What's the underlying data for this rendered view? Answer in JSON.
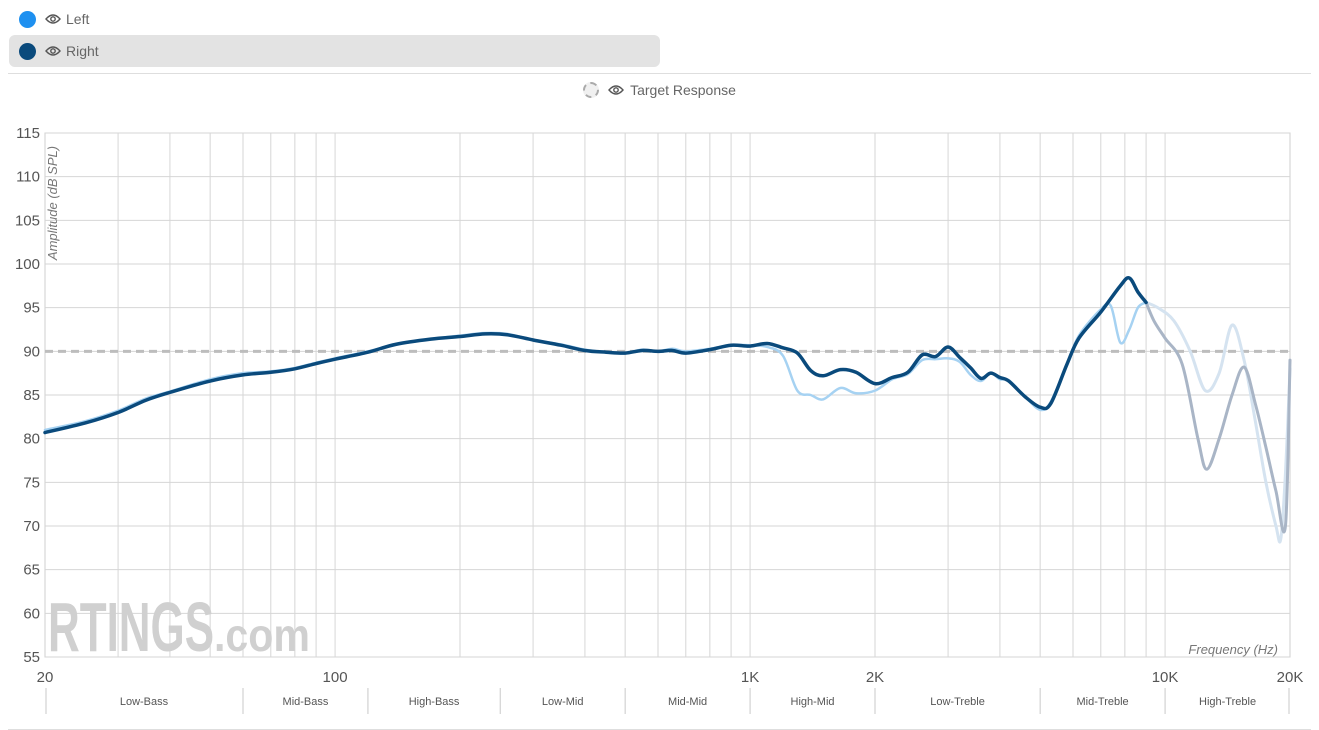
{
  "legend": {
    "items": [
      {
        "label": "Left",
        "color": "#1e90f0",
        "selected": false
      },
      {
        "label": "Right",
        "color": "#0a4a7c",
        "selected": true
      }
    ],
    "target_label": "Target Response"
  },
  "watermark": {
    "brand": "RTINGS",
    "suffix": ".com"
  },
  "chart_data": {
    "type": "line",
    "x_scale": "log",
    "xlim": [
      20,
      20000
    ],
    "ylim": [
      55,
      115
    ],
    "ylabel": "Amplitude (dB SPL)",
    "xlabel": "Frequency (Hz)",
    "yticks": [
      55,
      60,
      65,
      70,
      75,
      80,
      85,
      90,
      95,
      100,
      105,
      110,
      115
    ],
    "xtick_labels": [
      {
        "value": 20,
        "label": "20"
      },
      {
        "value": 100,
        "label": "100"
      },
      {
        "value": 1000,
        "label": "1K"
      },
      {
        "value": 2000,
        "label": "2K"
      },
      {
        "value": 10000,
        "label": "10K"
      },
      {
        "value": 20000,
        "label": "20K"
      }
    ],
    "grid": true,
    "target_level": 90,
    "bands": [
      {
        "label": "Low-Bass",
        "from": 20,
        "to": 60
      },
      {
        "label": "Mid-Bass",
        "from": 60,
        "to": 120
      },
      {
        "label": "High-Bass",
        "from": 120,
        "to": 250
      },
      {
        "label": "Low-Mid",
        "from": 250,
        "to": 500
      },
      {
        "label": "Mid-Mid",
        "from": 500,
        "to": 1000
      },
      {
        "label": "High-Mid",
        "from": 1000,
        "to": 2000
      },
      {
        "label": "Low-Treble",
        "from": 2000,
        "to": 5000
      },
      {
        "label": "Mid-Treble",
        "from": 5000,
        "to": 10000
      },
      {
        "label": "High-Treble",
        "from": 10000,
        "to": 20000
      }
    ],
    "faded_above_hz": 9000,
    "series": [
      {
        "name": "Left",
        "color": "#a6d2f2",
        "faded_color": "#d5e3f0",
        "points": [
          [
            20,
            81
          ],
          [
            25,
            82
          ],
          [
            30,
            83.2
          ],
          [
            35,
            84.6
          ],
          [
            40,
            85.4
          ],
          [
            50,
            86.8
          ],
          [
            60,
            87.5
          ],
          [
            70,
            87.7
          ],
          [
            80,
            88.1
          ],
          [
            90,
            88.7
          ],
          [
            100,
            89.2
          ],
          [
            120,
            90
          ],
          [
            140,
            90.8
          ],
          [
            170,
            91.4
          ],
          [
            200,
            91.8
          ],
          [
            230,
            92.1
          ],
          [
            260,
            92
          ],
          [
            300,
            91.3
          ],
          [
            350,
            90.8
          ],
          [
            400,
            90.2
          ],
          [
            450,
            89.9
          ],
          [
            500,
            89.8
          ],
          [
            550,
            90.2
          ],
          [
            600,
            90
          ],
          [
            650,
            90.3
          ],
          [
            700,
            90
          ],
          [
            800,
            90.3
          ],
          [
            900,
            90.7
          ],
          [
            1000,
            90.7
          ],
          [
            1100,
            90.5
          ],
          [
            1200,
            89.5
          ],
          [
            1300,
            85.5
          ],
          [
            1400,
            85
          ],
          [
            1500,
            84.5
          ],
          [
            1650,
            85.8
          ],
          [
            1800,
            85.2
          ],
          [
            2000,
            85.5
          ],
          [
            2200,
            86.8
          ],
          [
            2400,
            87.4
          ],
          [
            2600,
            89
          ],
          [
            2800,
            89.1
          ],
          [
            3000,
            89.2
          ],
          [
            3200,
            88.8
          ],
          [
            3400,
            87.3
          ],
          [
            3600,
            86.6
          ],
          [
            3800,
            87.5
          ],
          [
            4000,
            86.8
          ],
          [
            4200,
            86.7
          ],
          [
            4600,
            84.8
          ],
          [
            5000,
            83.3
          ],
          [
            5300,
            84.2
          ],
          [
            5800,
            88.5
          ],
          [
            6200,
            91.8
          ],
          [
            7000,
            94.8
          ],
          [
            7400,
            95.2
          ],
          [
            7800,
            91
          ],
          [
            8200,
            92.5
          ],
          [
            8600,
            95
          ],
          [
            9000,
            95.6
          ],
          [
            9600,
            95
          ],
          [
            10500,
            93.5
          ],
          [
            11500,
            90
          ],
          [
            12500,
            85.5
          ],
          [
            13500,
            87.5
          ],
          [
            14500,
            93
          ],
          [
            15500,
            89
          ],
          [
            16500,
            82
          ],
          [
            17500,
            75
          ],
          [
            18500,
            70
          ],
          [
            19000,
            68.5
          ],
          [
            19500,
            76
          ],
          [
            20000,
            88
          ]
        ]
      },
      {
        "name": "Right",
        "color": "#0a4a7c",
        "faded_color": "#a9b5c6",
        "points": [
          [
            20,
            80.7
          ],
          [
            25,
            81.8
          ],
          [
            30,
            83
          ],
          [
            35,
            84.4
          ],
          [
            40,
            85.3
          ],
          [
            50,
            86.6
          ],
          [
            60,
            87.3
          ],
          [
            70,
            87.6
          ],
          [
            80,
            88
          ],
          [
            90,
            88.6
          ],
          [
            100,
            89.1
          ],
          [
            120,
            89.9
          ],
          [
            140,
            90.8
          ],
          [
            170,
            91.4
          ],
          [
            200,
            91.7
          ],
          [
            230,
            92
          ],
          [
            260,
            91.9
          ],
          [
            300,
            91.3
          ],
          [
            350,
            90.7
          ],
          [
            400,
            90.1
          ],
          [
            450,
            89.9
          ],
          [
            500,
            89.8
          ],
          [
            550,
            90.1
          ],
          [
            600,
            90
          ],
          [
            650,
            90.1
          ],
          [
            700,
            89.8
          ],
          [
            800,
            90.2
          ],
          [
            900,
            90.7
          ],
          [
            1000,
            90.6
          ],
          [
            1100,
            90.9
          ],
          [
            1200,
            90.4
          ],
          [
            1300,
            89.8
          ],
          [
            1400,
            87.8
          ],
          [
            1500,
            87.2
          ],
          [
            1650,
            87.9
          ],
          [
            1800,
            87.6
          ],
          [
            2000,
            86.3
          ],
          [
            2200,
            87
          ],
          [
            2400,
            87.6
          ],
          [
            2600,
            89.6
          ],
          [
            2800,
            89.4
          ],
          [
            3000,
            90.5
          ],
          [
            3200,
            89.3
          ],
          [
            3400,
            88.1
          ],
          [
            3600,
            86.9
          ],
          [
            3800,
            87.5
          ],
          [
            4000,
            87
          ],
          [
            4200,
            86.6
          ],
          [
            4600,
            84.8
          ],
          [
            5000,
            83.6
          ],
          [
            5300,
            84
          ],
          [
            5800,
            88.5
          ],
          [
            6200,
            91.5
          ],
          [
            7000,
            94.5
          ],
          [
            7800,
            97.5
          ],
          [
            8200,
            98.4
          ],
          [
            8600,
            96.8
          ],
          [
            9000,
            95.6
          ],
          [
            9400,
            93.5
          ],
          [
            10000,
            91.5
          ],
          [
            11000,
            88.5
          ],
          [
            12000,
            80
          ],
          [
            12600,
            76.5
          ],
          [
            13500,
            80
          ],
          [
            14500,
            85
          ],
          [
            15500,
            88.2
          ],
          [
            16500,
            84
          ],
          [
            17500,
            79
          ],
          [
            18500,
            74
          ],
          [
            19500,
            70
          ],
          [
            20000,
            89
          ]
        ]
      }
    ]
  }
}
